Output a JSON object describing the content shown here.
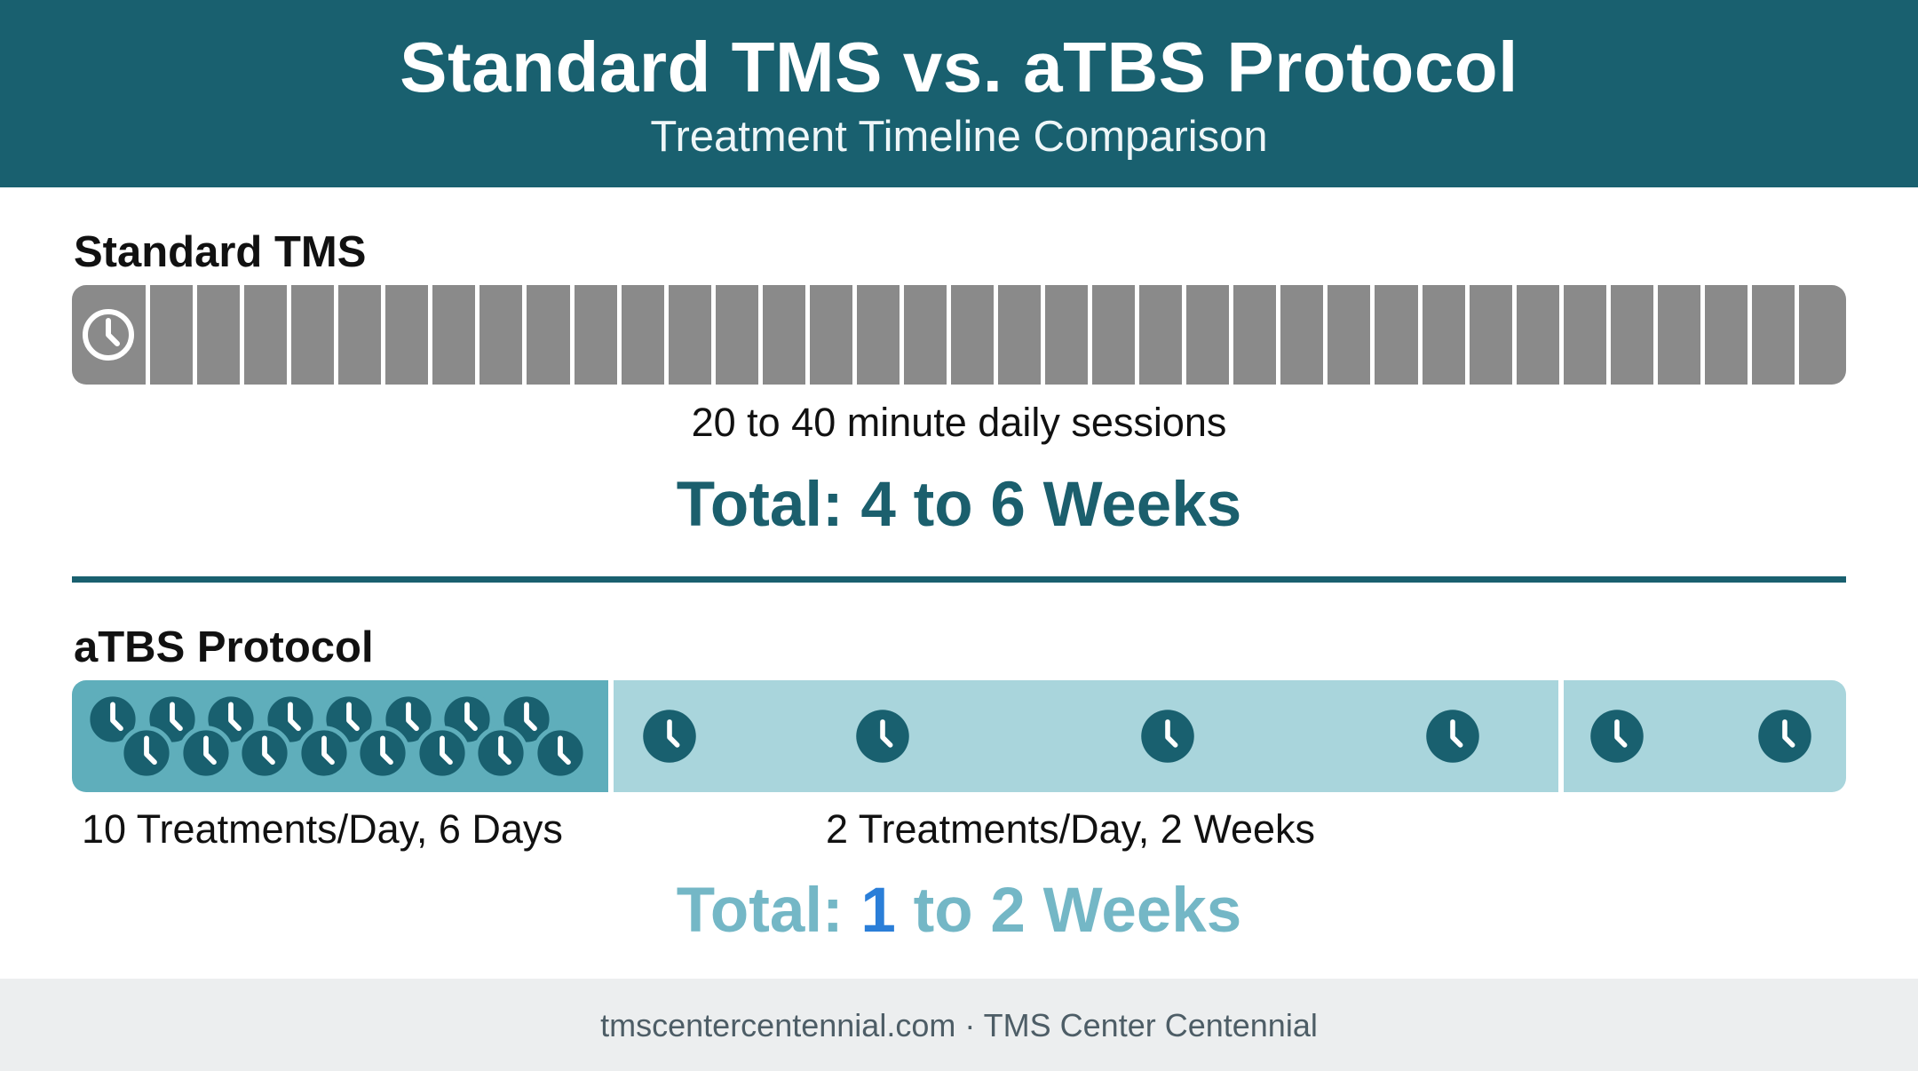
{
  "header": {
    "title": "Standard TMS vs. aTBS Protocol",
    "subtitle": "Treatment Timeline Comparison"
  },
  "standard": {
    "label": "Standard TMS",
    "sessions_text": "20 to 40 minute daily sessions",
    "total_text": "Total: 4 to 6 Weeks",
    "segment_count": 36,
    "bar_color": "#8a8a8a"
  },
  "atbs": {
    "label": "aTBS Protocol",
    "phase1_caption": "10 Treatments/Day, 6 Days",
    "phase2_caption": "2 Treatments/Day, 2 Weeks",
    "total_prefix": "Total: ",
    "total_highlight": "1",
    "total_suffix": " to 2 Weeks",
    "dense_clock_count": 16,
    "mid_clock_count": 4,
    "end_clock_count": 2,
    "dense_color": "#5faebb",
    "light_color": "#a9d5dc",
    "clock_color": "#19606f"
  },
  "footer": {
    "text": "tmscentercentennial.com · TMS Center Centennial"
  },
  "colors": {
    "header_bg": "#19606f",
    "accent_teal": "#1b5f6d",
    "accent_blue": "#2a7ed8"
  }
}
